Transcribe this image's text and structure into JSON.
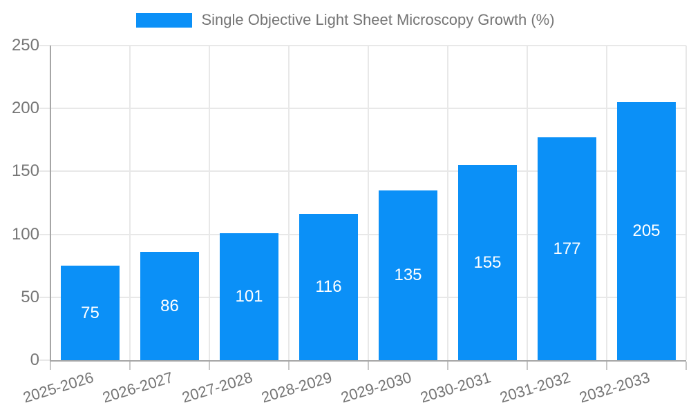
{
  "legend": {
    "label": "Single Objective Light Sheet Microscopy Growth (%)"
  },
  "colors": {
    "bar": "#0b90f7",
    "grid": "#e8e8e8",
    "axis": "#a6a6a6",
    "x_tick": "#c7c7c7",
    "text": "#757575",
    "value_label": "#ffffff"
  },
  "chart_data": {
    "type": "bar",
    "title": "Single Objective Light Sheet Microscopy Growth (%)",
    "categories": [
      "2025-2026",
      "2026-2027",
      "2027-2028",
      "2028-2029",
      "2029-2030",
      "2030-2031",
      "2031-2032",
      "2032-2033"
    ],
    "values": [
      75,
      86,
      101,
      116,
      135,
      155,
      177,
      205
    ],
    "xlabel": "",
    "ylabel": "",
    "ylim": [
      0,
      250
    ],
    "yticks": [
      0,
      50,
      100,
      150,
      200,
      250
    ],
    "grid": true,
    "legend_position": "top",
    "value_labels": "inside-center",
    "x_label_rotation_deg": -17
  }
}
